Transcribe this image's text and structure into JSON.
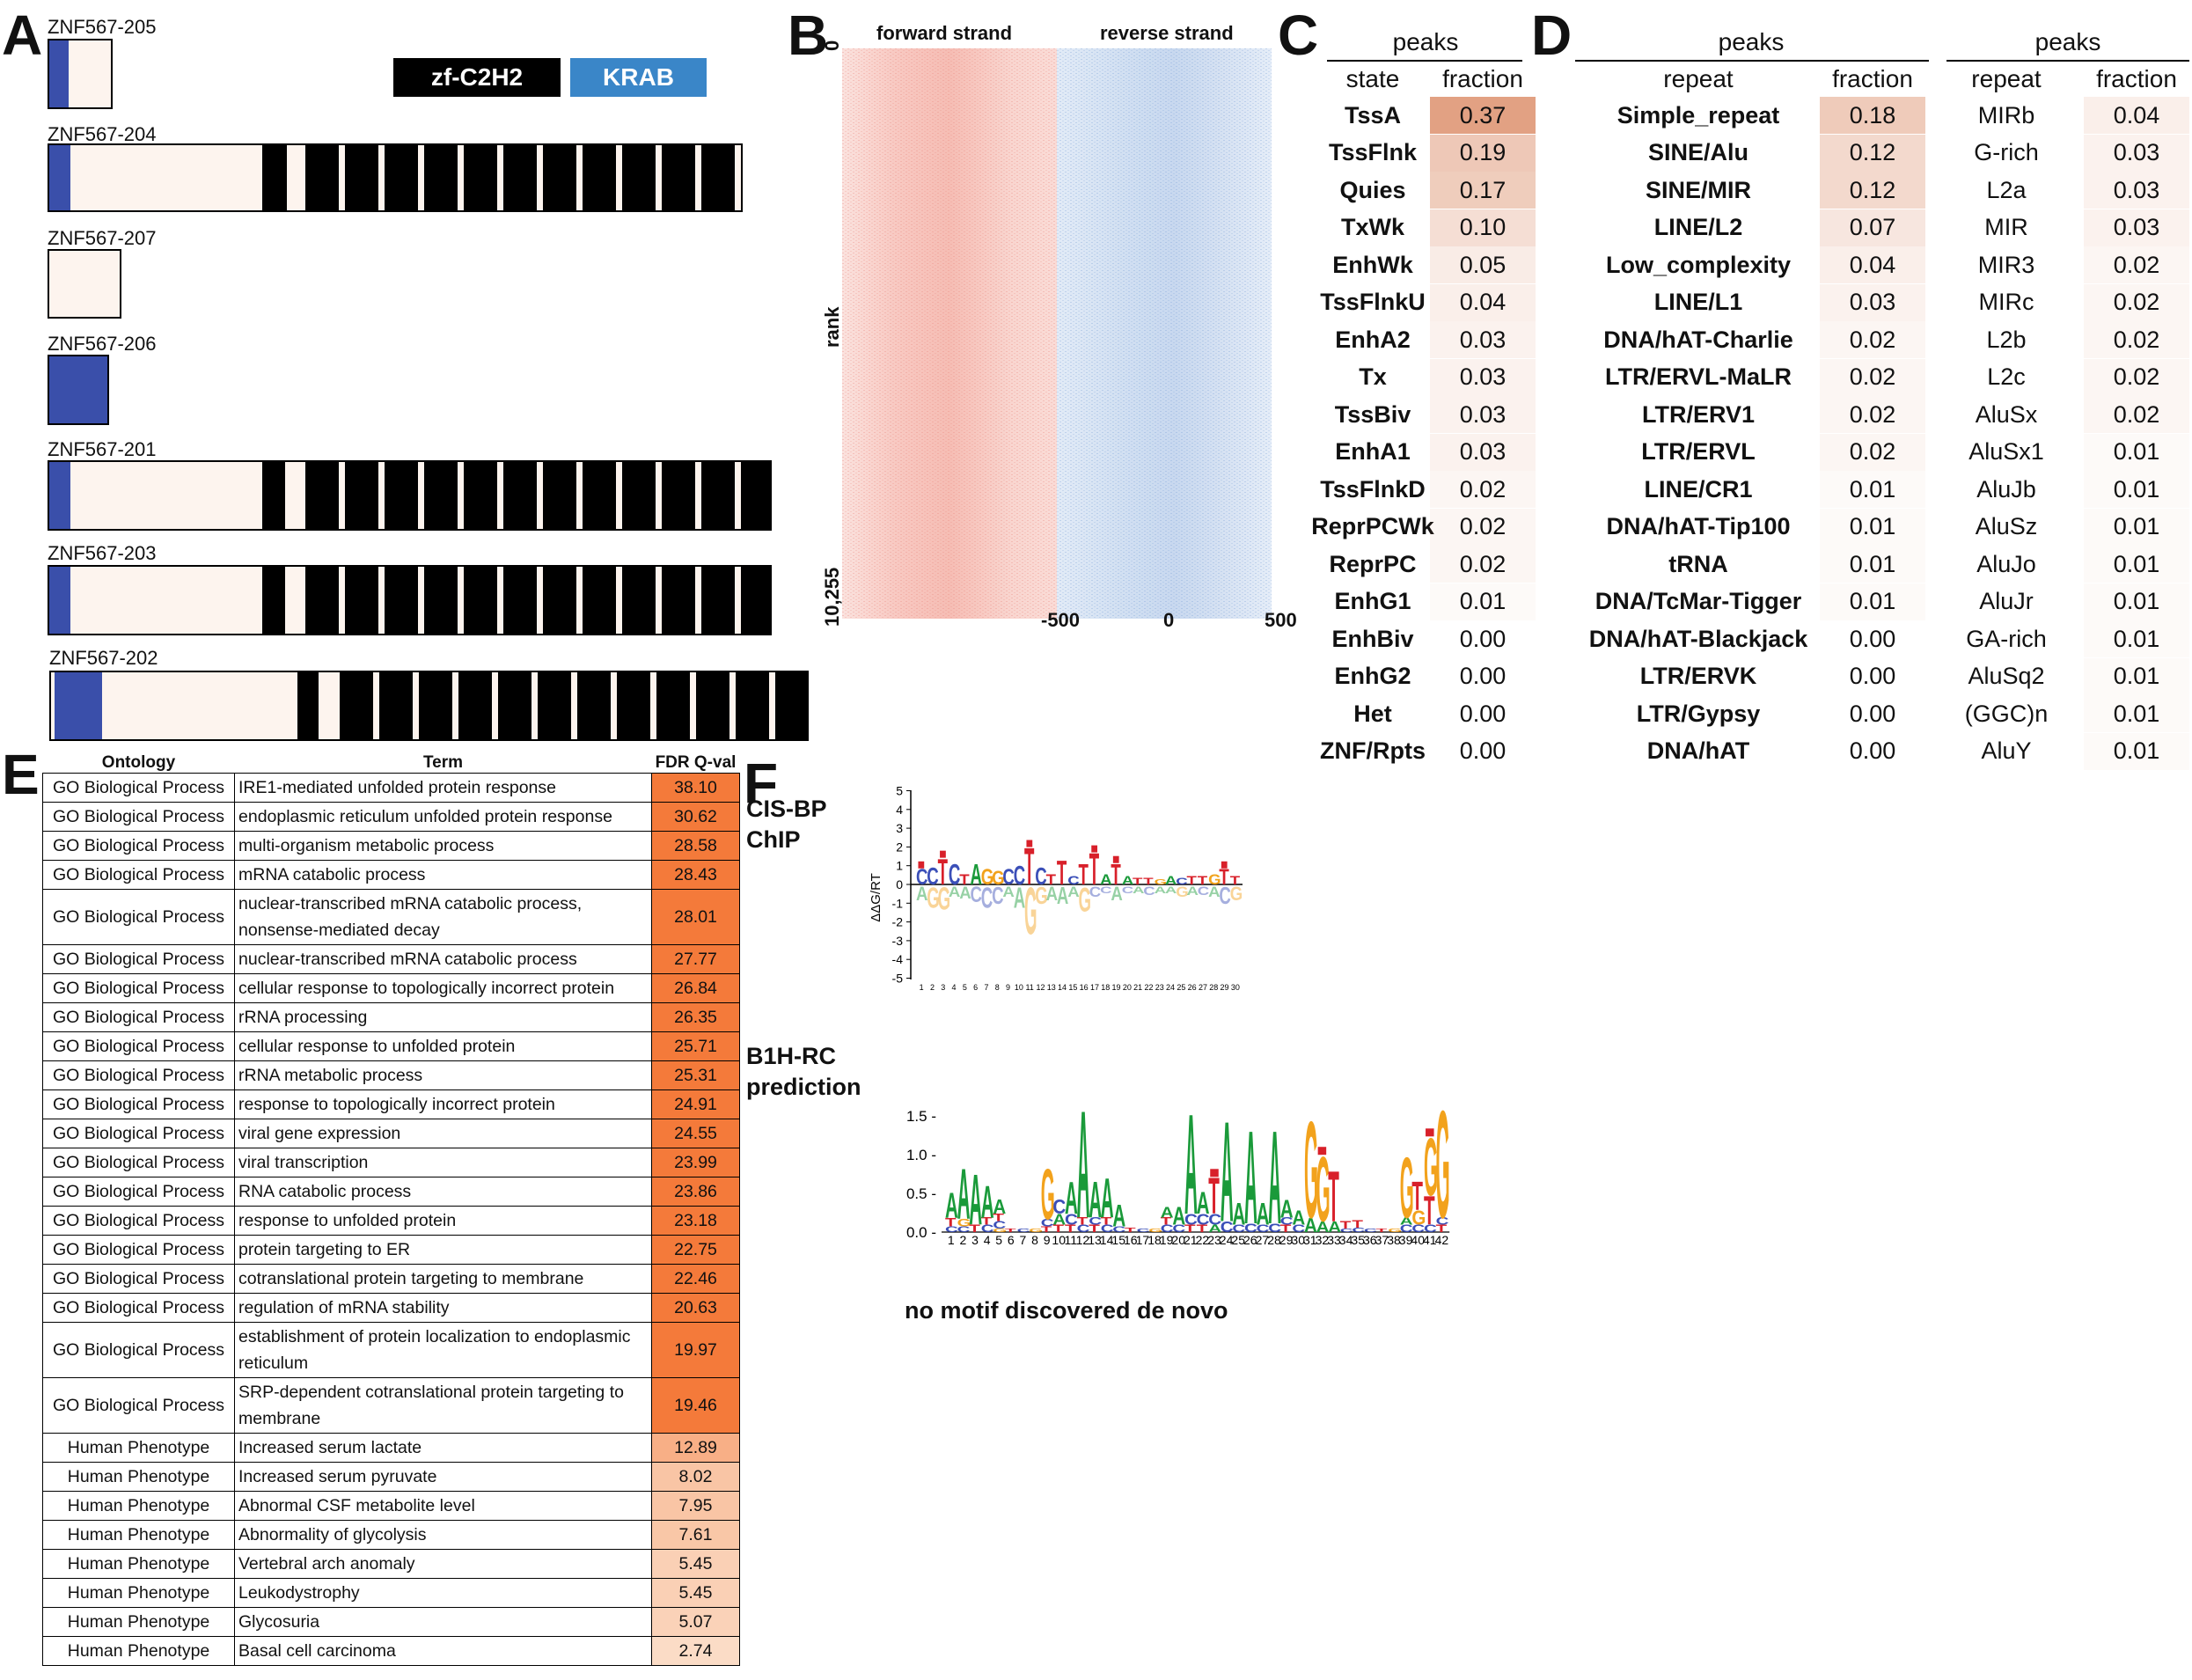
{
  "panelA": {
    "letter": "A",
    "legend": {
      "zf": "zf-C2H2",
      "krab": "KRAB"
    },
    "isoforms": [
      {
        "name": "ZNF567-205"
      },
      {
        "name": "ZNF567-204"
      },
      {
        "name": "ZNF567-207"
      },
      {
        "name": "ZNF567-206"
      },
      {
        "name": "ZNF567-201"
      },
      {
        "name": "ZNF567-203"
      },
      {
        "name": "ZNF567-202"
      }
    ],
    "colors": {
      "krab": "#3a4faa",
      "zf": "#000000",
      "body": "#fdf4ee"
    }
  },
  "panelB": {
    "letter": "B",
    "forward": "forward strand",
    "reverse": "reverse strand",
    "rank_label": "rank",
    "rank_top": "0",
    "rank_bottom": "10,255",
    "ticks": [
      "-500",
      "0",
      "500"
    ],
    "colors": {
      "forward": "#f4a8a0",
      "reverse": "#a9c3e6"
    }
  },
  "panelC": {
    "letter": "C",
    "header": "peaks",
    "col1": "state",
    "col2": "fraction",
    "rows": [
      {
        "name": "TssA",
        "value": "0.37"
      },
      {
        "name": "TssFlnk",
        "value": "0.19"
      },
      {
        "name": "Quies",
        "value": "0.17"
      },
      {
        "name": "TxWk",
        "value": "0.10"
      },
      {
        "name": "EnhWk",
        "value": "0.05"
      },
      {
        "name": "TssFlnkU",
        "value": "0.04"
      },
      {
        "name": "EnhA2",
        "value": "0.03"
      },
      {
        "name": "Tx",
        "value": "0.03"
      },
      {
        "name": "TssBiv",
        "value": "0.03"
      },
      {
        "name": "EnhA1",
        "value": "0.03"
      },
      {
        "name": "TssFlnkD",
        "value": "0.02"
      },
      {
        "name": "ReprPCWk",
        "value": "0.02"
      },
      {
        "name": "ReprPC",
        "value": "0.02"
      },
      {
        "name": "EnhG1",
        "value": "0.01"
      },
      {
        "name": "EnhBiv",
        "value": "0.00"
      },
      {
        "name": "EnhG2",
        "value": "0.00"
      },
      {
        "name": "Het",
        "value": "0.00"
      },
      {
        "name": "ZNF/Rpts",
        "value": "0.00"
      }
    ]
  },
  "panelD": {
    "letter": "D",
    "left": {
      "header": "peaks",
      "col1": "repeat",
      "col2": "fraction",
      "rows": [
        {
          "name": "Simple_repeat",
          "value": "0.18"
        },
        {
          "name": "SINE/Alu",
          "value": "0.12"
        },
        {
          "name": "SINE/MIR",
          "value": "0.12"
        },
        {
          "name": "LINE/L2",
          "value": "0.07"
        },
        {
          "name": "Low_complexity",
          "value": "0.04"
        },
        {
          "name": "LINE/L1",
          "value": "0.03"
        },
        {
          "name": "DNA/hAT-Charlie",
          "value": "0.02"
        },
        {
          "name": "LTR/ERVL-MaLR",
          "value": "0.02"
        },
        {
          "name": "LTR/ERV1",
          "value": "0.02"
        },
        {
          "name": "LTR/ERVL",
          "value": "0.02"
        },
        {
          "name": "LINE/CR1",
          "value": "0.01"
        },
        {
          "name": "DNA/hAT-Tip100",
          "value": "0.01"
        },
        {
          "name": "tRNA",
          "value": "0.01"
        },
        {
          "name": "DNA/TcMar-Tigger",
          "value": "0.01"
        },
        {
          "name": "DNA/hAT-Blackjack",
          "value": "0.00"
        },
        {
          "name": "LTR/ERVK",
          "value": "0.00"
        },
        {
          "name": "LTR/Gypsy",
          "value": "0.00"
        },
        {
          "name": "DNA/hAT",
          "value": "0.00"
        }
      ]
    },
    "right": {
      "header": "peaks",
      "col1": "repeat",
      "col2": "fraction",
      "rows": [
        {
          "name": "MIRb",
          "value": "0.04"
        },
        {
          "name": "G-rich",
          "value": "0.03"
        },
        {
          "name": "L2a",
          "value": "0.03"
        },
        {
          "name": "MIR",
          "value": "0.03"
        },
        {
          "name": "MIR3",
          "value": "0.02"
        },
        {
          "name": "MIRc",
          "value": "0.02"
        },
        {
          "name": "L2b",
          "value": "0.02"
        },
        {
          "name": "L2c",
          "value": "0.02"
        },
        {
          "name": "AluSx",
          "value": "0.02"
        },
        {
          "name": "AluSx1",
          "value": "0.01"
        },
        {
          "name": "AluJb",
          "value": "0.01"
        },
        {
          "name": "AluSz",
          "value": "0.01"
        },
        {
          "name": "AluJo",
          "value": "0.01"
        },
        {
          "name": "AluJr",
          "value": "0.01"
        },
        {
          "name": "GA-rich",
          "value": "0.01"
        },
        {
          "name": "AluSq2",
          "value": "0.01"
        },
        {
          "name": "(GGC)n",
          "value": "0.01"
        },
        {
          "name": "AluY",
          "value": "0.01"
        }
      ]
    },
    "heat_color": "#d8825a"
  },
  "panelE": {
    "letter": "E",
    "headers": [
      "Ontology",
      "Term",
      "FDR Q-val"
    ],
    "rows": [
      {
        "ontology": "GO Biological Process",
        "term": "IRE1-mediated unfolded protein response",
        "fdr": "38.10"
      },
      {
        "ontology": "GO Biological Process",
        "term": "endoplasmic reticulum unfolded protein response",
        "fdr": "30.62"
      },
      {
        "ontology": "GO Biological Process",
        "term": "multi-organism metabolic process",
        "fdr": "28.58"
      },
      {
        "ontology": "GO Biological Process",
        "term": "mRNA catabolic process",
        "fdr": "28.43"
      },
      {
        "ontology": "GO Biological Process",
        "term": "nuclear-transcribed mRNA catabolic process, nonsense-mediated decay",
        "fdr": "28.01"
      },
      {
        "ontology": "GO Biological Process",
        "term": "nuclear-transcribed mRNA catabolic process",
        "fdr": "27.77"
      },
      {
        "ontology": "GO Biological Process",
        "term": "cellular response to topologically incorrect protein",
        "fdr": "26.84"
      },
      {
        "ontology": "GO Biological Process",
        "term": "rRNA processing",
        "fdr": "26.35"
      },
      {
        "ontology": "GO Biological Process",
        "term": "cellular response to unfolded protein",
        "fdr": "25.71"
      },
      {
        "ontology": "GO Biological Process",
        "term": "rRNA metabolic process",
        "fdr": "25.31"
      },
      {
        "ontology": "GO Biological Process",
        "term": "response to topologically incorrect protein",
        "fdr": "24.91"
      },
      {
        "ontology": "GO Biological Process",
        "term": "viral gene expression",
        "fdr": "24.55"
      },
      {
        "ontology": "GO Biological Process",
        "term": "viral transcription",
        "fdr": "23.99"
      },
      {
        "ontology": "GO Biological Process",
        "term": "RNA catabolic process",
        "fdr": "23.86"
      },
      {
        "ontology": "GO Biological Process",
        "term": "response to unfolded protein",
        "fdr": "23.18"
      },
      {
        "ontology": "GO Biological Process",
        "term": "protein targeting to ER",
        "fdr": "22.75"
      },
      {
        "ontology": "GO Biological Process",
        "term": "cotranslational protein targeting to membrane",
        "fdr": "22.46"
      },
      {
        "ontology": "GO Biological Process",
        "term": "regulation of mRNA stability",
        "fdr": "20.63"
      },
      {
        "ontology": "GO Biological Process",
        "term": "establishment of protein localization to endoplasmic reticulum",
        "fdr": "19.97"
      },
      {
        "ontology": "GO Biological Process",
        "term": "SRP-dependent cotranslational protein targeting to membrane",
        "fdr": "19.46"
      },
      {
        "ontology": "Human Phenotype",
        "term": "Increased serum lactate",
        "fdr": "12.89"
      },
      {
        "ontology": "Human Phenotype",
        "term": "Increased serum pyruvate",
        "fdr": "8.02"
      },
      {
        "ontology": "Human Phenotype",
        "term": "Abnormal CSF metabolite level",
        "fdr": "7.95"
      },
      {
        "ontology": "Human Phenotype",
        "term": "Abnormality of glycolysis",
        "fdr": "7.61"
      },
      {
        "ontology": "Human Phenotype",
        "term": "Vertebral arch anomaly",
        "fdr": "5.45"
      },
      {
        "ontology": "Human Phenotype",
        "term": "Leukodystrophy",
        "fdr": "5.45"
      },
      {
        "ontology": "Human Phenotype",
        "term": "Glycosuria",
        "fdr": "5.07"
      },
      {
        "ontology": "Human Phenotype",
        "term": "Basal cell carcinoma",
        "fdr": "2.74"
      }
    ],
    "colors": {
      "high": "#f47a3a",
      "low": "#fbe0cc"
    }
  },
  "panelF": {
    "letter": "F",
    "label1": "CIS-BP ChIP",
    "label2": "B1H-RC prediction",
    "note": "no motif discovered de novo",
    "logo1_ylabel": "ΔΔG/RT",
    "logo1_yticks": [
      "5",
      "4",
      "3",
      "2",
      "1",
      "0",
      "-1",
      "-2",
      "-3",
      "-4",
      "-5"
    ],
    "logo1_positions": "30",
    "logo2_yticks": [
      "1.5 -",
      "1.0 -",
      "0.5 -",
      "0.0 -"
    ],
    "logo2_positions": "42",
    "base_colors": {
      "A": "#1a9a3a",
      "C": "#3b4fb8",
      "G": "#f2a21c",
      "T": "#d8202a"
    }
  }
}
